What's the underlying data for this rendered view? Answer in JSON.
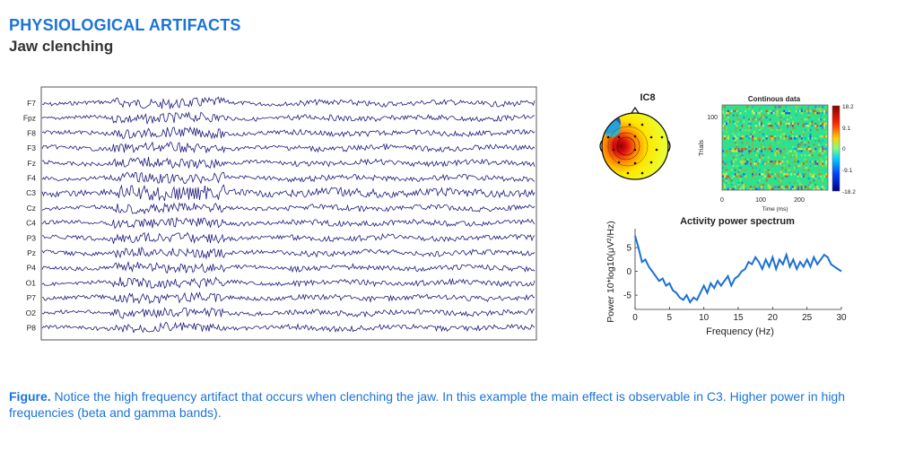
{
  "header": {
    "title": "PHYSIOLOGICAL ARTIFACTS",
    "subtitle": "Jaw clenching"
  },
  "eeg": {
    "channels": [
      "F7",
      "Fpz",
      "F8",
      "F3",
      "Fz",
      "F4",
      "C3",
      "Cz",
      "C4",
      "P3",
      "Pz",
      "P4",
      "O1",
      "P7",
      "O2",
      "P8"
    ],
    "trace_color": "#1f1a7a"
  },
  "topomap": {
    "title": "IC8"
  },
  "erpimage": {
    "title": "Continous data",
    "ylabel": "Trials",
    "ytick": "100",
    "xlabel": "Time (ms)",
    "xticks": [
      "0",
      "100",
      "200"
    ],
    "colorbar_ticks": [
      "18.2",
      "9.1",
      "0",
      "-9.1",
      "-18.2"
    ]
  },
  "chart_data": {
    "type": "line",
    "title": "Activity power spectrum",
    "xlabel": "Frequency (Hz)",
    "ylabel": "Power 10*log10(μV²/Hz)",
    "xlim": [
      0,
      30
    ],
    "ylim": [
      -8,
      9
    ],
    "xticks": [
      "0",
      "5",
      "10",
      "15",
      "20",
      "25",
      "30"
    ],
    "yticks": [
      "5",
      "0",
      "-5"
    ],
    "series": [
      {
        "color": "#1a6fd6",
        "x": [
          0,
          0.5,
          1,
          1.5,
          2,
          2.5,
          3,
          3.5,
          4,
          4.5,
          5,
          5.5,
          6,
          6.5,
          7,
          7.5,
          8,
          8.5,
          9,
          9.5,
          10,
          10.5,
          11,
          11.5,
          12,
          12.5,
          13,
          13.5,
          14,
          14.5,
          15,
          15.5,
          16,
          16.5,
          17,
          17.5,
          18,
          18.5,
          19,
          19.5,
          20,
          20.5,
          21,
          21.5,
          22,
          22.5,
          23,
          23.5,
          24,
          24.5,
          25,
          25.5,
          26,
          26.5,
          27,
          27.5,
          28,
          28.5,
          29,
          29.5,
          30
        ],
        "y": [
          7.5,
          5,
          2,
          2.5,
          1,
          0,
          -1,
          -2,
          -1.5,
          -3,
          -2.5,
          -4,
          -4.5,
          -5.5,
          -6,
          -5,
          -6.5,
          -5.5,
          -6,
          -4.5,
          -3,
          -4.5,
          -2.5,
          -3.5,
          -2,
          -3,
          -2,
          -1,
          -3,
          -1.5,
          -1,
          0,
          0.5,
          2,
          1.5,
          3,
          2,
          0.5,
          2.5,
          1,
          3,
          0.5,
          2.5,
          1.5,
          3.5,
          1,
          2.5,
          0.5,
          2,
          1,
          2.5,
          1,
          3,
          1.5,
          2.5,
          3.5,
          3,
          1.5,
          1,
          0.5,
          0
        ]
      }
    ]
  },
  "caption": {
    "lead": "Figure.",
    "text": " Notice the high frequency artifact that occurs when clenching the jaw. In this example the main effect is observable in C3. Higher power in high frequencies (beta and gamma bands)."
  }
}
